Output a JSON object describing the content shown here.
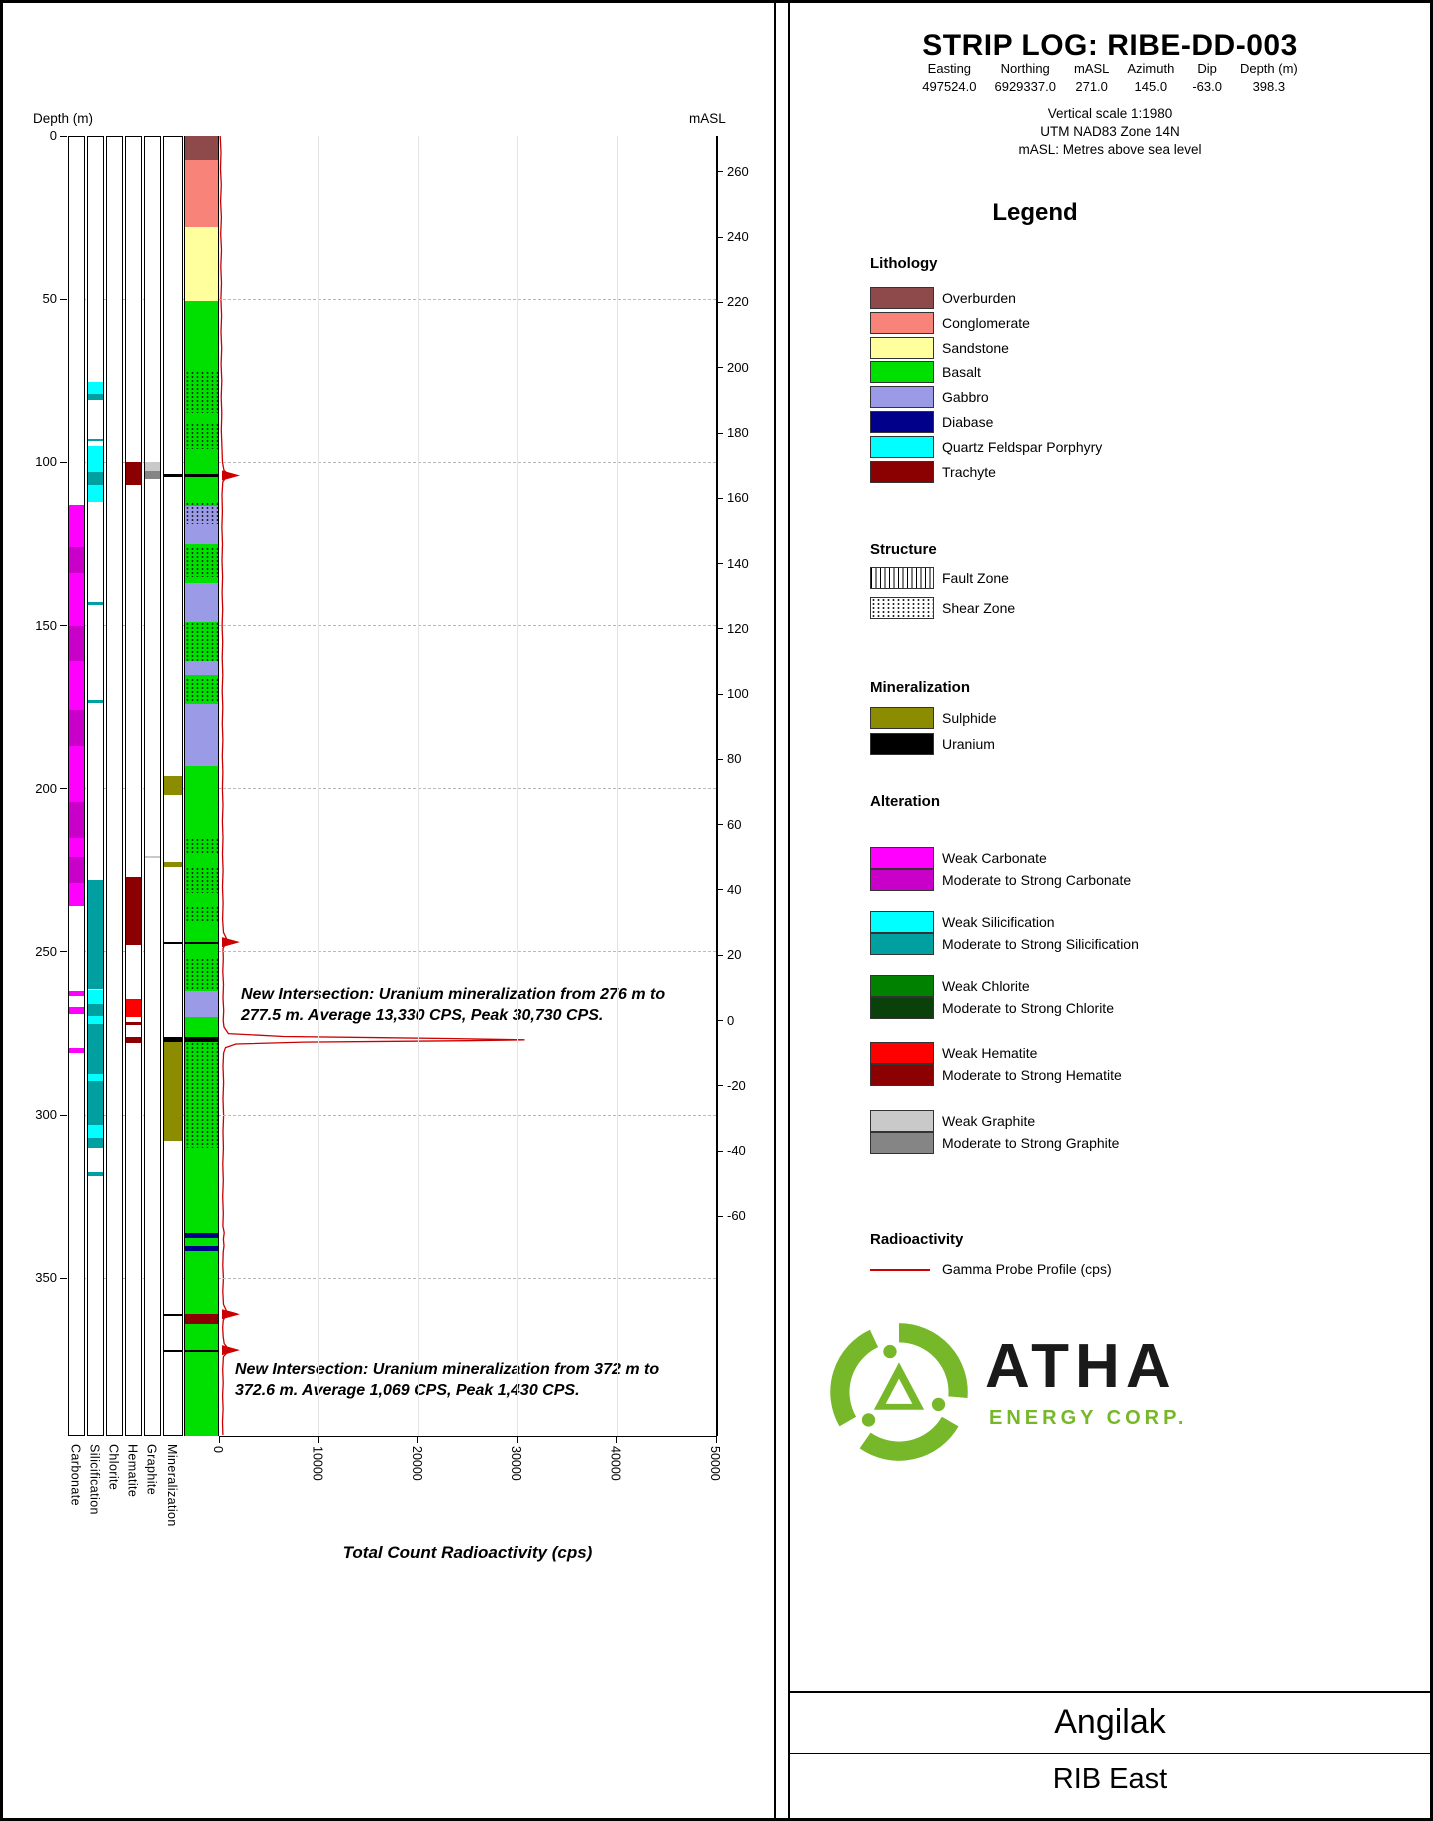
{
  "header": {
    "title": "STRIP LOG: RIBE-DD-003",
    "meta": {
      "columns": [
        "Easting",
        "Northing",
        "mASL",
        "Azimuth",
        "Dip",
        "Depth (m)"
      ],
      "values": [
        "497524.0",
        "6929337.0",
        "271.0",
        "145.0",
        "-63.0",
        "398.3"
      ]
    },
    "notes": [
      "Vertical scale 1:1980",
      "UTM NAD83 Zone 14N",
      "mASL: Metres above sea level"
    ]
  },
  "legend": {
    "heading": "Legend",
    "lithology": {
      "heading": "Lithology",
      "entries": [
        {
          "label": "Overburden",
          "color": "#8e4a4a"
        },
        {
          "label": "Conglomerate",
          "color": "#f88379"
        },
        {
          "label": "Sandstone",
          "color": "#ffff9e"
        },
        {
          "label": "Basalt",
          "color": "#00e000"
        },
        {
          "label": "Gabbro",
          "color": "#9a9ae6"
        },
        {
          "label": "Diabase",
          "color": "#00008b"
        },
        {
          "label": "Quartz Feldspar Porphyry",
          "color": "#00ffff"
        },
        {
          "label": "Trachyte",
          "color": "#8b0000"
        }
      ]
    },
    "structure": {
      "heading": "Structure",
      "entries": [
        {
          "label": "Fault Zone",
          "pattern": "fault"
        },
        {
          "label": "Shear Zone",
          "pattern": "shear"
        }
      ]
    },
    "mineralization": {
      "heading": "Mineralization",
      "entries": [
        {
          "label": "Sulphide",
          "color": "#8c8c00"
        },
        {
          "label": "Uranium",
          "color": "#000000"
        }
      ]
    },
    "alteration": {
      "heading": "Alteration",
      "groups": [
        {
          "weak_label": "Weak Carbonate",
          "weak_color": "#ff00ff",
          "strong_label": "Moderate to Strong Carbonate",
          "strong_color": "#c800c8"
        },
        {
          "weak_label": "Weak Silicification",
          "weak_color": "#00ffff",
          "strong_label": "Moderate to Strong Silicification",
          "strong_color": "#00a0a0"
        },
        {
          "weak_label": "Weak Chlorite",
          "weak_color": "#008200",
          "strong_label": "Moderate to Strong Chlorite",
          "strong_color": "#0a400a"
        },
        {
          "weak_label": "Weak Hematite",
          "weak_color": "#ff0000",
          "strong_label": "Moderate to Strong Hematite",
          "strong_color": "#8b0000"
        },
        {
          "weak_label": "Weak Graphite",
          "weak_color": "#c9c9c9",
          "strong_label": "Moderate to Strong Graphite",
          "strong_color": "#858585"
        }
      ]
    },
    "radioactivity": {
      "heading": "Radioactivity",
      "entries": [
        {
          "label": "Gamma Probe Profile (cps)",
          "color": "#cc0000"
        }
      ]
    }
  },
  "branding": {
    "name": "ATHA",
    "subtitle": "ENERGY CORP.",
    "green": "#76b82a"
  },
  "footer": {
    "project": "Angilak",
    "area": "RIB East"
  },
  "chart_data": {
    "type": "strip-log",
    "depth_axis": {
      "label": "Depth (m)",
      "min": 0,
      "max": 398.3,
      "ticks": [
        0,
        50,
        100,
        150,
        200,
        250,
        300,
        350
      ]
    },
    "masl_axis": {
      "label": "mASL",
      "surface_masl": 271.0,
      "ticks": [
        260,
        240,
        220,
        200,
        180,
        160,
        140,
        120,
        100,
        80,
        60,
        40,
        20,
        0,
        -20,
        -40,
        -60
      ]
    },
    "columns": [
      "Carbonate",
      "Silicification",
      "Chlorite",
      "Hematite",
      "Graphite",
      "Mineralization"
    ],
    "lithology": [
      {
        "from": 0,
        "to": 7.5,
        "unit": "Overburden"
      },
      {
        "from": 7.5,
        "to": 28,
        "unit": "Conglomerate"
      },
      {
        "from": 28,
        "to": 50.5,
        "unit": "Sandstone"
      },
      {
        "from": 50.5,
        "to": 103.5,
        "unit": "Basalt"
      },
      {
        "from": 103.5,
        "to": 104.5,
        "unit": "Uranium"
      },
      {
        "from": 104.5,
        "to": 113.5,
        "unit": "Basalt"
      },
      {
        "from": 113.5,
        "to": 125,
        "unit": "Gabbro"
      },
      {
        "from": 125,
        "to": 137,
        "unit": "Basalt"
      },
      {
        "from": 137,
        "to": 149,
        "unit": "Gabbro"
      },
      {
        "from": 149,
        "to": 161,
        "unit": "Basalt"
      },
      {
        "from": 161,
        "to": 165,
        "unit": "Gabbro"
      },
      {
        "from": 165,
        "to": 174,
        "unit": "Basalt"
      },
      {
        "from": 174,
        "to": 193,
        "unit": "Gabbro"
      },
      {
        "from": 193,
        "to": 246.8,
        "unit": "Basalt"
      },
      {
        "from": 246.8,
        "to": 247.6,
        "unit": "Uranium"
      },
      {
        "from": 247.6,
        "to": 262,
        "unit": "Basalt"
      },
      {
        "from": 262,
        "to": 270,
        "unit": "Gabbro"
      },
      {
        "from": 270,
        "to": 276,
        "unit": "Basalt"
      },
      {
        "from": 276,
        "to": 277.5,
        "unit": "Uranium"
      },
      {
        "from": 277.5,
        "to": 336,
        "unit": "Basalt"
      },
      {
        "from": 336,
        "to": 337.5,
        "unit": "Diabase"
      },
      {
        "from": 337.5,
        "to": 340,
        "unit": "Basalt"
      },
      {
        "from": 340,
        "to": 341.5,
        "unit": "Diabase"
      },
      {
        "from": 341.5,
        "to": 361,
        "unit": "Basalt"
      },
      {
        "from": 361,
        "to": 364,
        "unit": "Trachyte"
      },
      {
        "from": 364,
        "to": 372,
        "unit": "Basalt"
      },
      {
        "from": 372,
        "to": 372.6,
        "unit": "Uranium"
      },
      {
        "from": 372.6,
        "to": 398.3,
        "unit": "Basalt"
      }
    ],
    "shear_zones": [
      [
        72,
        85
      ],
      [
        88,
        96
      ],
      [
        112,
        119
      ],
      [
        126,
        135
      ],
      [
        149,
        161
      ],
      [
        166,
        173
      ],
      [
        215,
        220
      ],
      [
        224,
        232
      ],
      [
        236,
        241
      ],
      [
        252,
        262
      ],
      [
        277.5,
        310
      ]
    ],
    "alteration": {
      "carbonate": [
        {
          "from": 113,
          "to": 126,
          "intensity": "weak"
        },
        {
          "from": 126,
          "to": 134,
          "intensity": "strong"
        },
        {
          "from": 134,
          "to": 150,
          "intensity": "weak"
        },
        {
          "from": 150,
          "to": 161,
          "intensity": "strong"
        },
        {
          "from": 161,
          "to": 176,
          "intensity": "weak"
        },
        {
          "from": 176,
          "to": 187,
          "intensity": "strong"
        },
        {
          "from": 187,
          "to": 204,
          "intensity": "weak"
        },
        {
          "from": 204,
          "to": 215,
          "intensity": "strong"
        },
        {
          "from": 215,
          "to": 221,
          "intensity": "weak"
        },
        {
          "from": 221,
          "to": 229,
          "intensity": "strong"
        },
        {
          "from": 229,
          "to": 236,
          "intensity": "weak"
        },
        {
          "from": 262,
          "to": 263.5,
          "intensity": "weak"
        },
        {
          "from": 267,
          "to": 269,
          "intensity": "weak"
        },
        {
          "from": 279.5,
          "to": 281,
          "intensity": "weak"
        }
      ],
      "silicification": [
        {
          "from": 75.5,
          "to": 79,
          "intensity": "weak"
        },
        {
          "from": 79,
          "to": 81,
          "intensity": "strong"
        },
        {
          "from": 92.8,
          "to": 93.6,
          "intensity": "strong"
        },
        {
          "from": 95,
          "to": 103,
          "intensity": "weak"
        },
        {
          "from": 103,
          "to": 107,
          "intensity": "strong"
        },
        {
          "from": 107,
          "to": 112,
          "intensity": "weak"
        },
        {
          "from": 142.8,
          "to": 143.6,
          "intensity": "strong"
        },
        {
          "from": 172.8,
          "to": 173.6,
          "intensity": "strong"
        },
        {
          "from": 228,
          "to": 261.5,
          "intensity": "strong"
        },
        {
          "from": 261.5,
          "to": 266,
          "intensity": "weak"
        },
        {
          "from": 266,
          "to": 269.5,
          "intensity": "strong"
        },
        {
          "from": 269.5,
          "to": 272,
          "intensity": "weak"
        },
        {
          "from": 272,
          "to": 287.5,
          "intensity": "strong"
        },
        {
          "from": 287.5,
          "to": 289.5,
          "intensity": "weak"
        },
        {
          "from": 289.5,
          "to": 303,
          "intensity": "strong"
        },
        {
          "from": 303,
          "to": 307,
          "intensity": "weak"
        },
        {
          "from": 307,
          "to": 310,
          "intensity": "strong"
        },
        {
          "from": 317.5,
          "to": 318.5,
          "intensity": "strong"
        }
      ],
      "chlorite": [],
      "hematite": [
        {
          "from": 100,
          "to": 107,
          "intensity": "strong"
        },
        {
          "from": 227,
          "to": 248,
          "intensity": "strong"
        },
        {
          "from": 264.5,
          "to": 270,
          "intensity": "weak"
        },
        {
          "from": 271.5,
          "to": 272.3,
          "intensity": "strong"
        },
        {
          "from": 276,
          "to": 278,
          "intensity": "strong"
        }
      ],
      "graphite": [
        {
          "from": 100,
          "to": 102.5,
          "intensity": "weak"
        },
        {
          "from": 102.5,
          "to": 105,
          "intensity": "strong"
        },
        {
          "from": 220.5,
          "to": 221.3,
          "intensity": "weak"
        }
      ]
    },
    "mineralization": {
      "sulphide": [
        [
          196,
          202
        ],
        [
          222.5,
          224
        ],
        [
          277,
          308
        ]
      ],
      "uranium": [
        [
          103.5,
          104.5
        ],
        [
          246.8,
          247.6
        ],
        [
          276,
          277.5
        ],
        [
          360.8,
          361.6
        ],
        [
          372,
          372.6
        ]
      ]
    },
    "gamma": {
      "axis": {
        "title": "Total Count Radioactivity (cps)",
        "min": 0,
        "max": 50000,
        "ticks": [
          0,
          10000,
          20000,
          30000,
          40000,
          50000
        ]
      },
      "profile": [
        [
          0,
          120
        ],
        [
          5,
          200
        ],
        [
          10,
          150
        ],
        [
          15,
          230
        ],
        [
          20,
          160
        ],
        [
          25,
          240
        ],
        [
          30,
          170
        ],
        [
          35,
          250
        ],
        [
          40,
          180
        ],
        [
          45,
          250
        ],
        [
          50,
          190
        ],
        [
          55,
          260
        ],
        [
          60,
          200
        ],
        [
          65,
          270
        ],
        [
          70,
          210
        ],
        [
          75,
          280
        ],
        [
          80,
          220
        ],
        [
          85,
          280
        ],
        [
          90,
          230
        ],
        [
          95,
          290
        ],
        [
          100,
          350
        ],
        [
          102.5,
          500
        ],
        [
          103.6,
          950
        ],
        [
          104.1,
          1500
        ],
        [
          104.8,
          650
        ],
        [
          106,
          380
        ],
        [
          110,
          300
        ],
        [
          115,
          340
        ],
        [
          120,
          290
        ],
        [
          125,
          350
        ],
        [
          130,
          300
        ],
        [
          135,
          360
        ],
        [
          140,
          310
        ],
        [
          145,
          370
        ],
        [
          150,
          310
        ],
        [
          155,
          370
        ],
        [
          160,
          320
        ],
        [
          165,
          380
        ],
        [
          170,
          320
        ],
        [
          175,
          380
        ],
        [
          180,
          330
        ],
        [
          185,
          390
        ],
        [
          190,
          330
        ],
        [
          195,
          390
        ],
        [
          200,
          340
        ],
        [
          205,
          400
        ],
        [
          210,
          340
        ],
        [
          215,
          400
        ],
        [
          220,
          350
        ],
        [
          225,
          410
        ],
        [
          230,
          350
        ],
        [
          235,
          410
        ],
        [
          240,
          360
        ],
        [
          244,
          450
        ],
        [
          246.2,
          800
        ],
        [
          246.9,
          1250
        ],
        [
          247.7,
          600
        ],
        [
          249,
          400
        ],
        [
          252,
          430
        ],
        [
          256,
          380
        ],
        [
          260,
          450
        ],
        [
          264,
          400
        ],
        [
          268,
          470
        ],
        [
          271,
          420
        ],
        [
          273,
          500
        ],
        [
          275,
          950
        ],
        [
          275.9,
          6500
        ],
        [
          276.5,
          23000
        ],
        [
          276.9,
          30730
        ],
        [
          277.2,
          25000
        ],
        [
          277.6,
          8500
        ],
        [
          278.2,
          1700
        ],
        [
          279.3,
          650
        ],
        [
          281,
          460
        ],
        [
          285,
          400
        ],
        [
          290,
          460
        ],
        [
          295,
          400
        ],
        [
          300,
          460
        ],
        [
          305,
          400
        ],
        [
          310,
          440
        ],
        [
          315,
          380
        ],
        [
          320,
          430
        ],
        [
          325,
          370
        ],
        [
          330,
          430
        ],
        [
          334,
          390
        ],
        [
          336,
          520
        ],
        [
          338,
          440
        ],
        [
          340,
          500
        ],
        [
          342,
          420
        ],
        [
          346,
          380
        ],
        [
          350,
          440
        ],
        [
          354,
          380
        ],
        [
          358,
          450
        ],
        [
          360,
          750
        ],
        [
          360.9,
          1800
        ],
        [
          361.7,
          600
        ],
        [
          363,
          420
        ],
        [
          365,
          370
        ],
        [
          368,
          420
        ],
        [
          370,
          520
        ],
        [
          371.6,
          950
        ],
        [
          372.3,
          1430
        ],
        [
          372.9,
          780
        ],
        [
          374,
          440
        ],
        [
          378,
          370
        ],
        [
          382,
          420
        ],
        [
          386,
          360
        ],
        [
          390,
          410
        ],
        [
          394,
          350
        ],
        [
          398,
          390
        ]
      ],
      "arrows": [
        104,
        247,
        361,
        372
      ]
    },
    "annotations": [
      {
        "depth": 276,
        "text": "New Intersection: Uranium mineralization from 276 m to 277.5 m. Average 13,330 CPS, Peak 30,730 CPS."
      },
      {
        "depth": 372,
        "text": "New Intersection: Uranium mineralization from 372 m to 372.6 m. Average 1,069 CPS, Peak 1,430 CPS."
      }
    ],
    "colors": {
      "Overburden": "#8e4a4a",
      "Conglomerate": "#f88379",
      "Sandstone": "#ffff9e",
      "Basalt": "#00e000",
      "Gabbro": "#9a9ae6",
      "Diabase": "#00008b",
      "Quartz Feldspar Porphyry": "#00ffff",
      "Trachyte": "#8b0000",
      "Uranium": "#000000",
      "Sulphide": "#8c8c00",
      "weak_carbonate": "#ff00ff",
      "strong_carbonate": "#c800c8",
      "weak_silicification": "#00ffff",
      "strong_silicification": "#00a0a0",
      "weak_chlorite": "#008200",
      "strong_chlorite": "#0a400a",
      "weak_hematite": "#ff0000",
      "strong_hematite": "#8b0000",
      "weak_graphite": "#c9c9c9",
      "strong_graphite": "#858585",
      "gamma": "#cc0000"
    }
  }
}
